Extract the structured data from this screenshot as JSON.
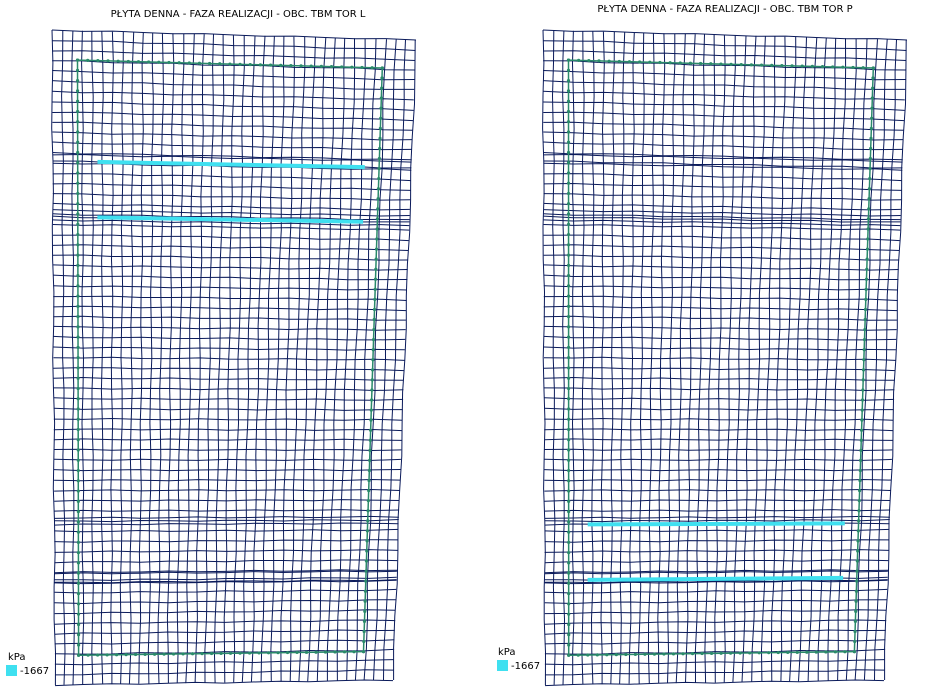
{
  "panels": [
    {
      "title": "PŁYTA DENNA - FAZA REALIZACJI - OBC. TBM TOR L",
      "unit": "kPa",
      "legend_value": -1667
    },
    {
      "title": "PŁYTA DENNA - FAZA REALIZACJI - OBC. TBM TOR P",
      "unit": "kPa",
      "legend_value": -1667
    }
  ]
}
